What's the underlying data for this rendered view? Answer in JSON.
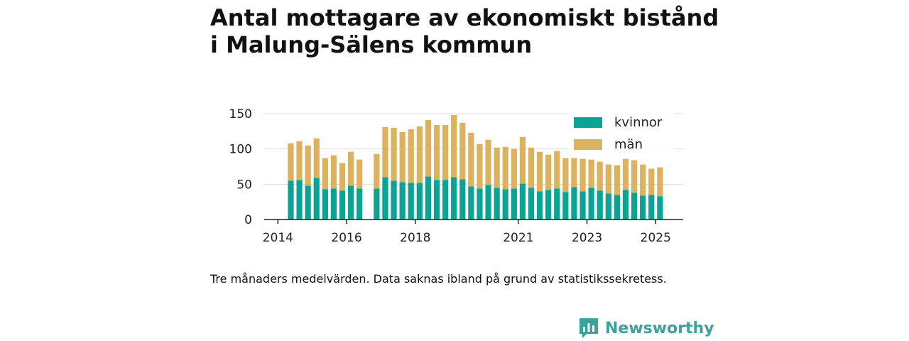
{
  "title_line1": "Antal mottagare av ekonomiskt bistånd",
  "title_line2": "i Malung-Sälens kommun",
  "caption": "Tre månaders medelvärden. Data saknas ibland på grund av statistikssekretess.",
  "brand": "Newsworthy",
  "colors": {
    "kvinnor": "#0aa394",
    "man": "#dcb25e",
    "grid": "#dddddd",
    "axis": "#222222"
  },
  "chart_data": {
    "type": "bar",
    "stacked": true,
    "ylim": [
      0,
      150
    ],
    "yticks": [
      0,
      50,
      100,
      150
    ],
    "xticks": [
      {
        "label": "2014",
        "x": 2014.0
      },
      {
        "label": "2016",
        "x": 2016.0
      },
      {
        "label": "2018",
        "x": 2018.0
      },
      {
        "label": "2021",
        "x": 2021.0
      },
      {
        "label": "2023",
        "x": 2023.0
      },
      {
        "label": "2025",
        "x": 2025.0
      }
    ],
    "xlim": [
      2013.6,
      2025.8
    ],
    "grid": true,
    "legend": "top-right",
    "series": [
      {
        "name": "kvinnor",
        "color": "#0aa394"
      },
      {
        "name": "män",
        "color": "#dcb25e"
      }
    ],
    "x": [
      2014.375,
      2014.625,
      2014.875,
      2015.125,
      2015.375,
      2015.625,
      2015.875,
      2016.125,
      2016.375,
      2016.875,
      2017.125,
      2017.375,
      2017.625,
      2017.875,
      2018.125,
      2018.375,
      2018.625,
      2018.875,
      2019.125,
      2019.375,
      2019.625,
      2019.875,
      2020.125,
      2020.375,
      2020.625,
      2020.875,
      2021.125,
      2021.375,
      2021.625,
      2021.875,
      2022.125,
      2022.375,
      2022.625,
      2022.875,
      2023.125,
      2023.375,
      2023.625,
      2023.875,
      2024.125,
      2024.375,
      2024.625,
      2024.875,
      2025.125
    ],
    "kvinnor": [
      55,
      56,
      48,
      59,
      43,
      44,
      41,
      48,
      44,
      44,
      60,
      55,
      53,
      52,
      52,
      61,
      56,
      56,
      60,
      57,
      47,
      44,
      49,
      45,
      43,
      44,
      51,
      45,
      40,
      42,
      44,
      39,
      46,
      40,
      45,
      41,
      37,
      35,
      42,
      38,
      34,
      35,
      33
    ],
    "man": [
      53,
      55,
      57,
      56,
      44,
      47,
      39,
      48,
      41,
      49,
      71,
      75,
      71,
      76,
      80,
      80,
      78,
      78,
      88,
      80,
      76,
      63,
      64,
      57,
      60,
      56,
      66,
      57,
      56,
      50,
      53,
      48,
      41,
      46,
      40,
      41,
      41,
      42,
      44,
      46,
      44,
      37,
      41
    ]
  }
}
